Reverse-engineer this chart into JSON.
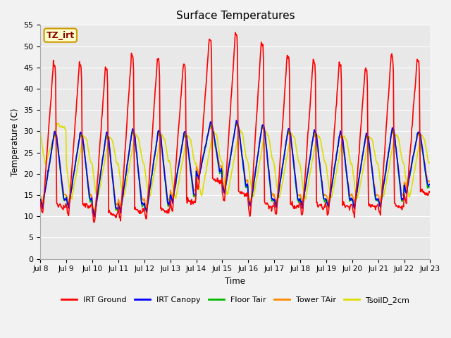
{
  "title": "Surface Temperatures",
  "ylabel": "Temperature (C)",
  "xlabel": "Time",
  "annotation_text": "TZ_irt",
  "annotation_color": "#880000",
  "annotation_bg": "#ffffcc",
  "annotation_border": "#cc9900",
  "ylim": [
    0,
    55
  ],
  "yticks": [
    0,
    5,
    10,
    15,
    20,
    25,
    30,
    35,
    40,
    45,
    50,
    55
  ],
  "xtick_labels": [
    "Jul 8",
    "Jul 9",
    "Jul 10",
    "Jul 11",
    "Jul 12",
    "Jul 13",
    "Jul 14",
    "Jul 15",
    "Jul 16",
    "Jul 17",
    "Jul 18",
    "Jul 19",
    "Jul 20",
    "Jul 21",
    "Jul 22",
    "Jul 23"
  ],
  "series": {
    "IRT Ground": {
      "color": "#ff0000",
      "lw": 1.2
    },
    "IRT Canopy": {
      "color": "#0000ff",
      "lw": 1.2
    },
    "Floor Tair": {
      "color": "#00bb00",
      "lw": 1.2
    },
    "Tower TAir": {
      "color": "#ff8800",
      "lw": 1.2
    },
    "TsoilD_2cm": {
      "color": "#dddd00",
      "lw": 1.2
    }
  },
  "background_color": "#e8e8e8",
  "fig_bg": "#f2f2f2",
  "grid_color": "#ffffff",
  "n_days": 15,
  "hours_per_day": 48,
  "day_peak_ground": [
    46,
    46,
    45,
    48,
    47,
    46,
    52,
    53,
    51,
    48,
    47,
    46,
    45,
    48,
    47
  ],
  "day_trough_ground": [
    10,
    10,
    8,
    9,
    9,
    11,
    16,
    13,
    10,
    10,
    10,
    10,
    10,
    10,
    13
  ]
}
